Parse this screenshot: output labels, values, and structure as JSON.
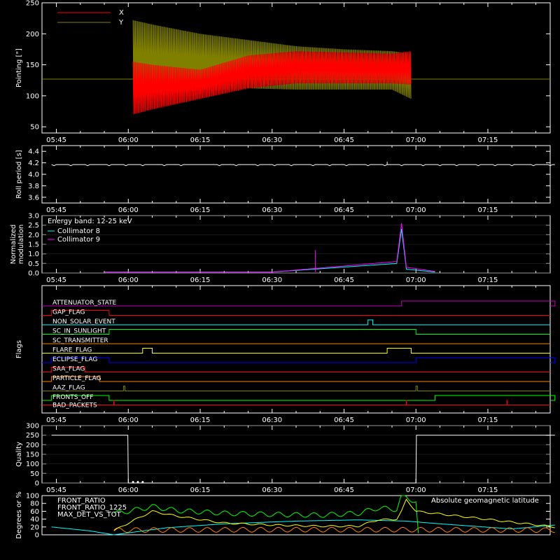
{
  "colors": {
    "background": "#000000",
    "axes": "#ffffff",
    "red": "#ff0000",
    "olive": "#808000",
    "cyan": "#00ffff",
    "magenta": "#ff00ff",
    "yellow": "#ffff00",
    "green": "#00ff00",
    "orange": "#ff8000",
    "blue": "#0000ff",
    "purple": "#c000c0"
  },
  "time_ticks": [
    "05:45",
    "06:00",
    "06:15",
    "06:30",
    "06:45",
    "07:00",
    "07:15"
  ],
  "chart_data": [
    {
      "type": "line",
      "id": "pointing",
      "ylabel": "Pointing [\"]",
      "ylim": [
        40,
        250
      ],
      "yticks": [
        50,
        100,
        150,
        200,
        250
      ],
      "grid": false,
      "legend_placement": "top-left",
      "series": [
        {
          "name": "X",
          "color": "#ff0000",
          "x": [
            "06:01",
            "06:05",
            "06:15",
            "06:25",
            "06:35",
            "06:45",
            "06:55",
            "06:59"
          ],
          "min": [
            70,
            78,
            95,
            112,
            120,
            120,
            120,
            118
          ],
          "max": [
            155,
            150,
            142,
            165,
            172,
            170,
            168,
            172
          ]
        },
        {
          "name": "Y",
          "color": "#808000",
          "x": [
            "06:01",
            "06:05",
            "06:15",
            "06:25",
            "06:35",
            "06:45",
            "06:55",
            "06:59"
          ],
          "min": [
            95,
            100,
            108,
            112,
            110,
            110,
            110,
            95
          ],
          "max": [
            222,
            215,
            200,
            190,
            180,
            175,
            172,
            168
          ]
        }
      ],
      "baseline": {
        "value": 127,
        "color": "#808000"
      }
    },
    {
      "type": "line",
      "id": "roll",
      "ylabel": "Roll period [s]",
      "ylim": [
        3.5,
        4.5
      ],
      "yticks": [
        3.6,
        3.8,
        4.0,
        4.2,
        4.4
      ],
      "yticklabels": [
        "3.6",
        "3.8",
        "4.0",
        "4.2",
        "4.4"
      ],
      "grid": false,
      "series": [
        {
          "color": "#ffffff",
          "x": [
            "05:44",
            "07:29"
          ],
          "y": [
            4.17,
            4.17
          ],
          "spike": {
            "x": "06:54",
            "y": 4.22
          }
        }
      ]
    },
    {
      "type": "line",
      "id": "modulation",
      "ylabel": [
        "Normalized",
        "modulation"
      ],
      "ylim": [
        0,
        3.0
      ],
      "yticks": [
        0,
        0.5,
        1.0,
        1.5,
        2.0,
        2.5,
        3.0
      ],
      "yticklabels": [
        "0.0",
        "0.5",
        "1.0",
        "1.5",
        "2.0",
        "2.5",
        "3.0"
      ],
      "grid": true,
      "annotation": "Energy band: 12-25 keV",
      "series": [
        {
          "name": "Collimator 8",
          "color": "#00ffff",
          "x": [
            "05:55",
            "06:30",
            "06:56",
            "06:57",
            "06:58",
            "07:04"
          ],
          "y": [
            0.05,
            0.05,
            0.5,
            2.3,
            0.2,
            0.05
          ]
        },
        {
          "name": "Collimator 9",
          "color": "#ff00ff",
          "x": [
            "05:55",
            "06:30",
            "06:56",
            "06:57",
            "06:58",
            "07:04"
          ],
          "y": [
            0.05,
            0.05,
            0.6,
            2.6,
            0.3,
            0.08
          ],
          "spike": {
            "x": "06:39",
            "y": 1.2
          }
        }
      ]
    },
    {
      "type": "line",
      "id": "flags",
      "ylabel": "Flags",
      "grid": false,
      "flags": [
        {
          "name": "ATTENUATOR_STATE",
          "color": "#c000c0",
          "high": [
            [
              "06:57",
              "07:29"
            ]
          ]
        },
        {
          "name": "GAP_FLAG",
          "color": "#ff0000",
          "high": [
            [
              "05:44",
              "05:56"
            ]
          ]
        },
        {
          "name": "NON_SOLAR_EVENT",
          "color": "#00ffff",
          "high": [
            [
              "06:50",
              "06:51"
            ]
          ]
        },
        {
          "name": "SC_IN_SUNLIGHT",
          "color": "#00ff00",
          "high": [
            [
              "05:56",
              "07:00"
            ]
          ]
        },
        {
          "name": "SC_TRANSMITTER",
          "color": "#ff8000",
          "high": []
        },
        {
          "name": "FLARE_FLAG",
          "color": "#ffff00",
          "high": [
            [
              "06:03",
              "06:05"
            ],
            [
              "06:54",
              "06:59"
            ]
          ]
        },
        {
          "name": "ECLIPSE_FLAG",
          "color": "#0000ff",
          "high": [
            [
              "05:44",
              "05:56"
            ],
            [
              "07:00",
              "07:29"
            ]
          ]
        },
        {
          "name": "SAA_FLAG",
          "color": "#ff0000",
          "high": [
            [
              "05:44",
              "05:51"
            ]
          ]
        },
        {
          "name": "PARTICLE_FLAG",
          "color": "#ff8000",
          "high": [
            [
              "05:44",
              "05:54"
            ]
          ]
        },
        {
          "name": "AAZ_FLAG",
          "color": "#808000",
          "high": [
            [
              "05:59",
              "05:59.3"
            ],
            [
              "07:00",
              "07:00.3"
            ]
          ]
        },
        {
          "name": "FRONTS_OFF",
          "color": "#00ff00",
          "high": [
            [
              "05:44",
              "05:56"
            ],
            [
              "07:04",
              "07:29"
            ]
          ]
        },
        {
          "name": "BAD_PACKETS",
          "color": "#ff0000",
          "spikes": [
            "05:57",
            "06:58",
            "07:19"
          ]
        }
      ]
    },
    {
      "type": "line",
      "id": "quality",
      "ylabel": "Quality",
      "ylim": [
        0,
        300
      ],
      "yticks": [
        0,
        50,
        100,
        150,
        200,
        250,
        300
      ],
      "grid": true,
      "series": [
        {
          "color": "#ffffff",
          "x": [
            "05:44",
            "05:59.9",
            "06:00",
            "07:00",
            "07:00.1",
            "07:29"
          ],
          "y": [
            250,
            250,
            0,
            0,
            250,
            250
          ],
          "dots": [
            "06:01",
            "06:02",
            "06:03"
          ]
        }
      ]
    },
    {
      "type": "line",
      "id": "ratios",
      "ylabel": "Degrees or %",
      "ylim": [
        0,
        100
      ],
      "yticks": [
        0,
        20,
        40,
        60,
        80,
        100
      ],
      "grid": false,
      "legend_placement": "top-left",
      "annotation": "Absolute geomagnetic latitude",
      "series": [
        {
          "name": "FRONT_RATIO",
          "color": "#ffff00",
          "x": [
            "05:57",
            "06:00",
            "06:05",
            "06:10",
            "06:20",
            "06:30",
            "06:40",
            "06:48",
            "06:52",
            "06:56",
            "06:57",
            "06:58",
            "07:00",
            "07:29"
          ],
          "y": [
            10,
            30,
            60,
            48,
            30,
            25,
            22,
            22,
            38,
            40,
            60,
            90,
            60,
            20
          ]
        },
        {
          "name": "FRONT_RATIO_1225",
          "color": "#00ff00",
          "x": [
            "05:57",
            "06:00",
            "06:05",
            "06:10",
            "06:20",
            "06:30",
            "06:40",
            "06:48",
            "06:52",
            "06:56",
            "06:57",
            "06:58",
            "07:00",
            "07:00.5"
          ],
          "y": [
            55,
            60,
            72,
            62,
            55,
            52,
            50,
            55,
            68,
            65,
            100,
            95,
            85,
            0
          ]
        },
        {
          "name": "MAX_DET_VS_TOT",
          "color": "#ff8000",
          "x": [
            "05:57",
            "06:30",
            "07:00",
            "07:29"
          ],
          "y": [
            12,
            13,
            13,
            12
          ]
        },
        {
          "name": "Absolute geomagnetic latitude",
          "color": "#00ffff",
          "x": [
            "05:44",
            "05:52",
            "05:57",
            "06:00",
            "06:08",
            "06:20",
            "06:35",
            "06:48",
            "06:58",
            "07:05",
            "07:20",
            "07:29"
          ],
          "y": [
            20,
            10,
            0,
            5,
            18,
            28,
            35,
            38,
            35,
            28,
            15,
            25
          ]
        }
      ]
    }
  ]
}
